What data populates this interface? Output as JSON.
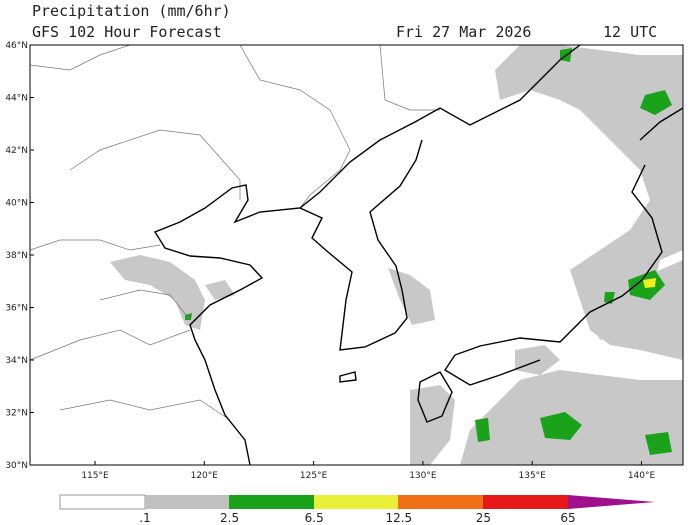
{
  "header": {
    "title": "Precipitation (mm/6hr)",
    "subtitle": "GFS 102 Hour Forecast",
    "date": "Fri 27 Mar 2026",
    "time": "12 UTC"
  },
  "map": {
    "lat_labels": [
      "46°N",
      "44°N",
      "42°N",
      "40°N",
      "38°N",
      "36°N",
      "34°N",
      "32°N",
      "30°N"
    ],
    "lon_labels": [
      "115°E",
      "120°E",
      "125°E",
      "130°E",
      "135°E",
      "140°E"
    ]
  },
  "colorbar": {
    "labels": [
      ".1",
      "2.5",
      "6.5",
      "12.5",
      "25",
      "65"
    ]
  }
}
